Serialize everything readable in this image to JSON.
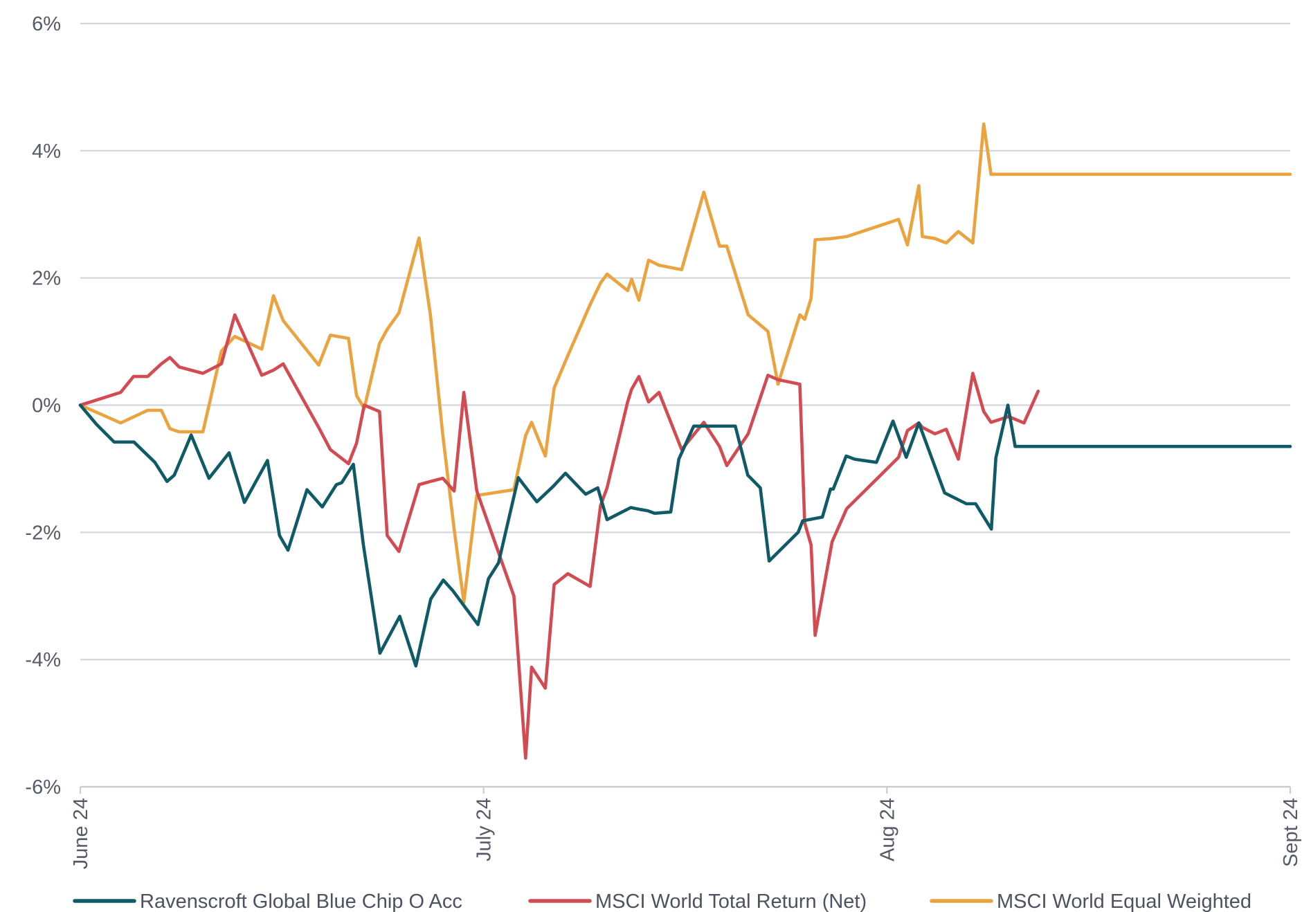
{
  "chart_data": {
    "type": "line",
    "title": "",
    "xlabel": "",
    "ylabel": "",
    "ylim": [
      -6,
      6
    ],
    "yticks": [
      6,
      4,
      2,
      0,
      -2,
      -4,
      -6
    ],
    "ytick_labels": [
      "6%",
      "4%",
      "2%",
      "0%",
      "-2%",
      "-4%",
      "-6%"
    ],
    "xticks": [
      0,
      1,
      2,
      3
    ],
    "xtick_labels": [
      "June 24",
      "July 24",
      "Aug 24",
      "Sept 24"
    ],
    "xlim": [
      0,
      3
    ],
    "grid": true,
    "legend_position": "bottom",
    "series": [
      {
        "name": "Ravenscroft Global Blue Chip O Acc",
        "color": "#0f5a66",
        "x": [
          0,
          0.04,
          0.084,
          0.115,
          0.133,
          0.185,
          0.215,
          0.233,
          0.275,
          0.319,
          0.369,
          0.407,
          0.464,
          0.494,
          0.515,
          0.562,
          0.6,
          0.635,
          0.648,
          0.677,
          0.702,
          0.743,
          0.792,
          0.832,
          0.869,
          0.9,
          0.924,
          0.986,
          1.012,
          1.037,
          1.086,
          1.132,
          1.172,
          1.203,
          1.253,
          1.283,
          1.306,
          1.365,
          1.388,
          1.407,
          1.424,
          1.464,
          1.484,
          1.521,
          1.584,
          1.624,
          1.655,
          1.686,
          1.708,
          1.78,
          1.791,
          1.84,
          1.86,
          1.867,
          1.899,
          1.92,
          1.974,
          2.015,
          2.048,
          2.079,
          2.143,
          2.197,
          2.22,
          2.259,
          2.27,
          2.3,
          2.318,
          2.339,
          2.357,
          2.379,
          2.389,
          2.409,
          2.436,
          2.477,
          2.5,
          2.547,
          2.625,
          2.644,
          2.661,
          2.686,
          2.693,
          2.738,
          2.764,
          2.798,
          2.817,
          2.843,
          2.883,
          2.919,
          3.0
        ],
        "values": [
          0,
          -0.3,
          -0.58,
          -0.58,
          -0.58,
          -0.9,
          -1.2,
          -1.1,
          -0.47,
          -1.15,
          -0.75,
          -1.53,
          -0.87,
          -2.05,
          -2.28,
          -1.33,
          -1.6,
          -1.25,
          -1.22,
          -0.93,
          -2.2,
          -3.9,
          -3.32,
          -4.1,
          -3.05,
          -2.75,
          -2.92,
          -3.45,
          -2.73,
          -2.48,
          -1.14,
          -1.52,
          -1.28,
          -1.07,
          -1.4,
          -1.3,
          -1.8,
          -1.61,
          -1.64,
          -1.66,
          -1.7,
          -1.68,
          -0.85,
          -0.33,
          -0.33,
          -0.33,
          -1.1,
          -1.3,
          -2.45,
          -2.0,
          -1.82,
          -1.76,
          -1.32,
          -1.32,
          -0.8,
          -0.85,
          -0.9,
          -0.25,
          -0.82,
          -0.28,
          -1.38,
          -1.55,
          -1.55,
          -1.95,
          -0.83,
          0,
          -0.65,
          -0.65,
          -0.65,
          -0.65,
          -0.65,
          -0.65,
          -0.65,
          -0.65,
          -0.65,
          -0.65,
          -0.65,
          -0.65,
          -0.65,
          -0.65,
          -0.65,
          -0.65,
          -0.65,
          -0.65,
          -0.65,
          -0.65,
          -0.65,
          -0.65,
          -0.65
        ]
      },
      {
        "name": "MSCI World Total Return (Net)",
        "color": "#d34b52",
        "x": [
          0,
          0.1,
          0.132,
          0.167,
          0.201,
          0.222,
          0.245,
          0.304,
          0.35,
          0.383,
          0.45,
          0.479,
          0.503,
          0.591,
          0.62,
          0.665,
          0.685,
          0.704,
          0.742,
          0.761,
          0.79,
          0.84,
          0.868,
          0.899,
          0.927,
          0.951,
          0.983,
          1.075,
          1.104,
          1.119,
          1.153,
          1.175,
          1.209,
          1.264,
          1.29,
          1.306,
          1.357,
          1.367,
          1.385,
          1.409,
          1.435,
          1.491,
          1.546,
          1.585,
          1.603,
          1.656,
          1.705,
          1.73,
          1.784,
          1.796,
          1.812,
          1.822,
          1.864,
          1.9,
          2.029,
          2.051,
          2.079,
          2.088,
          2.119,
          2.147,
          2.177,
          2.213,
          2.24,
          2.258,
          2.302,
          2.34,
          2.375
        ],
        "values": [
          0,
          0.2,
          0.45,
          0.45,
          0.65,
          0.75,
          0.6,
          0.5,
          0.65,
          1.42,
          0.47,
          0.55,
          0.65,
          -0.35,
          -0.7,
          -0.92,
          -0.6,
          0,
          -0.1,
          -2.05,
          -2.3,
          -1.25,
          -1.2,
          -1.15,
          -1.35,
          0.2,
          -1.35,
          -3.0,
          -5.55,
          -4.12,
          -4.45,
          -2.82,
          -2.65,
          -2.85,
          -1.58,
          -1.3,
          0.05,
          0.25,
          0.45,
          0.05,
          0.2,
          -0.7,
          -0.27,
          -0.65,
          -0.95,
          -0.45,
          0.47,
          0.4,
          0.33,
          -1.85,
          -2.2,
          -3.62,
          -2.15,
          -1.63,
          -0.82,
          -0.4,
          -0.28,
          -0.35,
          -0.45,
          -0.38,
          -0.85,
          0.5,
          -0.1,
          -0.27,
          -0.18,
          -0.28,
          0.22
        ]
      },
      {
        "name": "MSCI World Equal Weighted",
        "color": "#eaa33e",
        "x": [
          0,
          0.1,
          0.167,
          0.201,
          0.222,
          0.245,
          0.304,
          0.35,
          0.383,
          0.45,
          0.479,
          0.503,
          0.591,
          0.62,
          0.665,
          0.685,
          0.704,
          0.742,
          0.761,
          0.79,
          0.84,
          0.868,
          0.899,
          0.927,
          0.951,
          0.983,
          1.075,
          1.104,
          1.119,
          1.153,
          1.175,
          1.209,
          1.264,
          1.29,
          1.306,
          1.357,
          1.367,
          1.385,
          1.409,
          1.435,
          1.491,
          1.546,
          1.585,
          1.603,
          1.656,
          1.705,
          1.73,
          1.784,
          1.796,
          1.812,
          1.822,
          1.864,
          1.9,
          2.029,
          2.051,
          2.079,
          2.088,
          2.119,
          2.147,
          2.177,
          2.213,
          2.24,
          2.258,
          2.302,
          2.34,
          2.375,
          2.406,
          2.442,
          2.458,
          2.487,
          2.51,
          2.539,
          2.558,
          2.596,
          2.667,
          2.681,
          2.714,
          2.728,
          2.753,
          2.764,
          2.789,
          2.84,
          2.88,
          2.898,
          2.921,
          2.945,
          2.97,
          3.0
        ],
        "values": [
          0,
          -0.28,
          -0.08,
          -0.08,
          -0.37,
          -0.42,
          -0.42,
          0.85,
          1.08,
          0.88,
          1.72,
          1.33,
          0.63,
          1.1,
          1.05,
          0.15,
          -0.05,
          0.97,
          1.19,
          1.45,
          2.63,
          1.42,
          -0.48,
          -1.95,
          -3.1,
          -1.42,
          -1.33,
          -0.48,
          -0.27,
          -0.8,
          0.27,
          0.78,
          1.58,
          1.92,
          2.06,
          1.8,
          1.98,
          1.65,
          2.28,
          2.2,
          2.13,
          3.35,
          2.5,
          2.5,
          1.42,
          1.16,
          0.33,
          1.42,
          1.35,
          1.68,
          2.6,
          2.62,
          2.65,
          2.92,
          2.52,
          3.45,
          2.65,
          2.62,
          2.55,
          2.73,
          2.55,
          4.42,
          3.63,
          3.63,
          3.63,
          3.63,
          3.63,
          3.63,
          3.63,
          3.63,
          3.63,
          3.63,
          3.63,
          3.63,
          3.63,
          3.63,
          3.63,
          3.63,
          3.63,
          3.63,
          3.63,
          3.63,
          3.63,
          3.63,
          3.63,
          3.63,
          3.63,
          3.63
        ]
      }
    ]
  }
}
